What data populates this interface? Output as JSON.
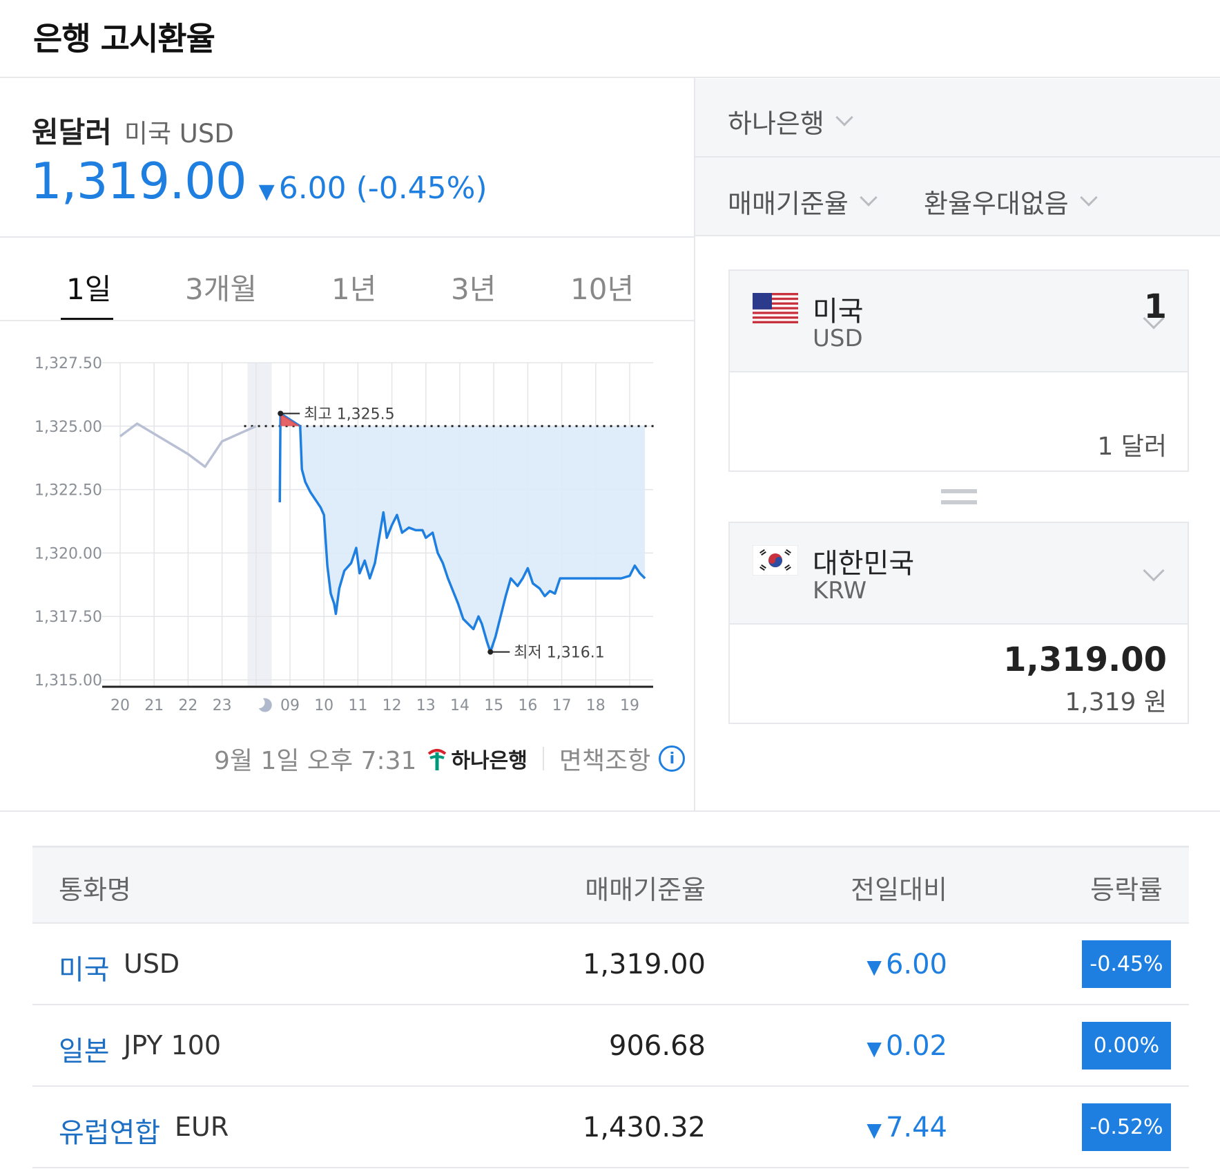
{
  "page": {
    "title": "은행 고시환율"
  },
  "pair": {
    "name": "원달러",
    "sub": "미국 USD",
    "price": "1,319.00",
    "change": "6.00 (-0.45%)",
    "direction": "down",
    "color": "#1e7fe0"
  },
  "tabs": [
    {
      "label": "1일",
      "active": true
    },
    {
      "label": "3개월",
      "active": false
    },
    {
      "label": "1년",
      "active": false
    },
    {
      "label": "3년",
      "active": false
    },
    {
      "label": "10년",
      "active": false
    }
  ],
  "chart_data": {
    "type": "line",
    "y_ticks": [
      "1,327.50",
      "1,325.00",
      "1,322.50",
      "1,320.00",
      "1,317.50",
      "1,315.00"
    ],
    "ylim": [
      1315.0,
      1327.5
    ],
    "x_ticks": [
      "20",
      "21",
      "22",
      "23",
      "moon-icon",
      "09",
      "10",
      "11",
      "12",
      "13",
      "14",
      "15",
      "16",
      "17",
      "18",
      "19"
    ],
    "reference_value": 1325.0,
    "high_label": "최고 1,325.5",
    "low_label": "최저 1,316.1",
    "high": 1325.5,
    "low": 1316.1,
    "series": [
      {
        "style": "previous-day",
        "color": "#b9c0d4",
        "points": [
          [
            0.0,
            1324.6
          ],
          [
            0.5,
            1325.1
          ],
          [
            2.0,
            1323.9
          ],
          [
            2.5,
            1323.4
          ],
          [
            3.0,
            1324.4
          ],
          [
            4.0,
            1325.0
          ]
        ]
      },
      {
        "style": "today",
        "color": "#1e7fe0",
        "fill": "#dcebfb",
        "points": [
          [
            4.7,
            1322.0
          ],
          [
            4.72,
            1325.5
          ],
          [
            5.3,
            1325.0
          ],
          [
            5.35,
            1323.3
          ],
          [
            5.45,
            1322.8
          ],
          [
            5.6,
            1322.4
          ],
          [
            5.8,
            1322.0
          ],
          [
            5.9,
            1321.8
          ],
          [
            6.0,
            1321.5
          ],
          [
            6.1,
            1319.5
          ],
          [
            6.2,
            1318.4
          ],
          [
            6.3,
            1318.0
          ],
          [
            6.35,
            1317.6
          ],
          [
            6.45,
            1318.6
          ],
          [
            6.6,
            1319.3
          ],
          [
            6.8,
            1319.6
          ],
          [
            6.95,
            1320.2
          ],
          [
            7.05,
            1319.2
          ],
          [
            7.2,
            1319.7
          ],
          [
            7.35,
            1319.0
          ],
          [
            7.5,
            1319.6
          ],
          [
            7.6,
            1320.4
          ],
          [
            7.75,
            1321.6
          ],
          [
            7.85,
            1320.6
          ],
          [
            8.0,
            1321.1
          ],
          [
            8.15,
            1321.5
          ],
          [
            8.3,
            1320.8
          ],
          [
            8.5,
            1321.0
          ],
          [
            8.7,
            1320.9
          ],
          [
            8.9,
            1320.9
          ],
          [
            9.0,
            1320.6
          ],
          [
            9.2,
            1320.8
          ],
          [
            9.35,
            1320.0
          ],
          [
            9.5,
            1319.6
          ],
          [
            9.65,
            1319.0
          ],
          [
            9.8,
            1318.5
          ],
          [
            9.95,
            1318.0
          ],
          [
            10.1,
            1317.4
          ],
          [
            10.25,
            1317.2
          ],
          [
            10.4,
            1317.0
          ],
          [
            10.55,
            1317.5
          ],
          [
            10.65,
            1317.2
          ],
          [
            10.8,
            1316.5
          ],
          [
            10.9,
            1316.1
          ],
          [
            11.05,
            1316.7
          ],
          [
            11.2,
            1317.5
          ],
          [
            11.35,
            1318.3
          ],
          [
            11.5,
            1319.0
          ],
          [
            11.7,
            1318.7
          ],
          [
            11.85,
            1319.0
          ],
          [
            12.0,
            1319.4
          ],
          [
            12.15,
            1318.8
          ],
          [
            12.35,
            1318.6
          ],
          [
            12.5,
            1318.3
          ],
          [
            12.65,
            1318.5
          ],
          [
            12.8,
            1318.4
          ],
          [
            12.95,
            1319.0
          ],
          [
            13.2,
            1319.0
          ],
          [
            13.5,
            1319.0
          ],
          [
            13.8,
            1319.0
          ],
          [
            14.0,
            1319.0
          ],
          [
            14.3,
            1319.0
          ],
          [
            14.5,
            1319.0
          ],
          [
            14.75,
            1319.0
          ],
          [
            15.0,
            1319.1
          ],
          [
            15.15,
            1319.5
          ],
          [
            15.3,
            1319.2
          ],
          [
            15.45,
            1319.0
          ]
        ]
      }
    ]
  },
  "source": {
    "datetime": "9월 1일 오후 7:31",
    "bank_logo": "하나은행",
    "disclaimer": "면책조항",
    "info_icon": "info-icon"
  },
  "controls": {
    "bank": "하나은행",
    "rate_type": "매매기준율",
    "preference": "환율우대없음"
  },
  "converter": {
    "from": {
      "country": "미국",
      "code": "USD",
      "amount": "1",
      "amount_text": "1 달러",
      "flag": "us-flag-icon"
    },
    "to": {
      "country": "대한민국",
      "code": "KRW",
      "amount": "1,319.00",
      "amount_text": "1,319 원",
      "flag": "kr-flag-icon"
    }
  },
  "table": {
    "headers": [
      "통화명",
      "매매기준율",
      "전일대비",
      "등락률"
    ],
    "rows": [
      {
        "name": "미국",
        "code": "USD",
        "rate": "1,319.00",
        "change": "6.00",
        "pct": "-0.45%"
      },
      {
        "name": "일본",
        "code": "JPY 100",
        "rate": "906.68",
        "change": "0.02",
        "pct": "0.00%"
      },
      {
        "name": "유럽연합",
        "code": "EUR",
        "rate": "1,430.32",
        "change": "7.44",
        "pct": "-0.52%"
      }
    ]
  }
}
